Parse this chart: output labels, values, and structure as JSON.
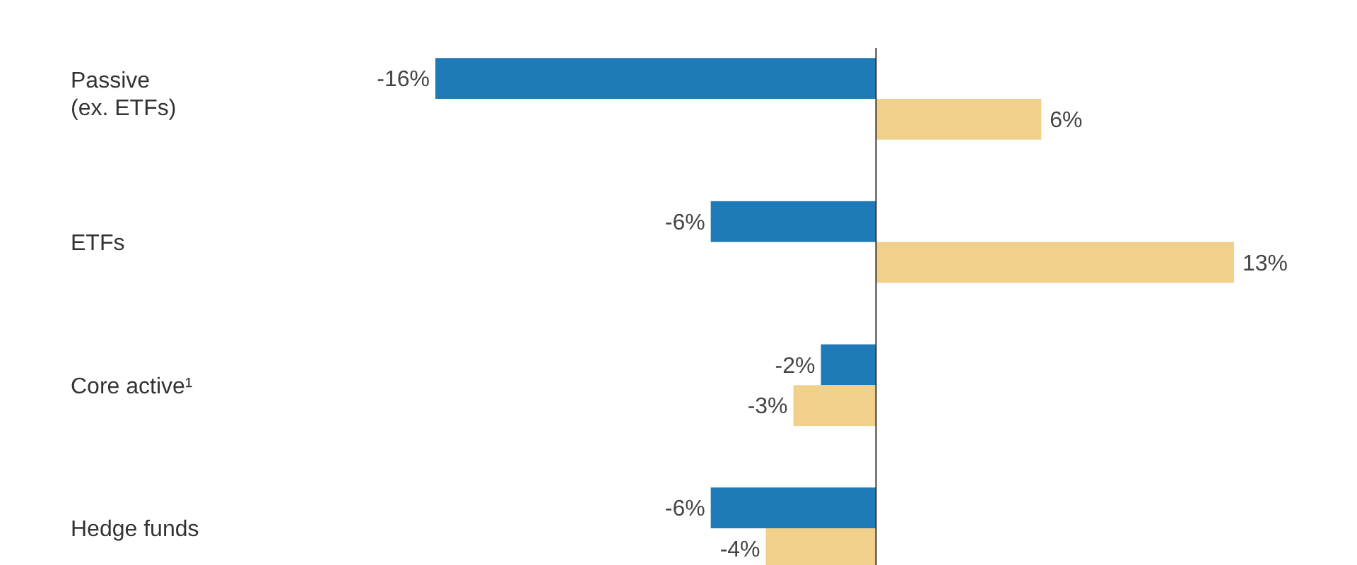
{
  "chart_data": {
    "type": "bar",
    "orientation": "horizontal",
    "categories": [
      "Passive\n(ex. ETFs)",
      "ETFs",
      "Core active¹",
      "Hedge funds"
    ],
    "series": [
      {
        "color": "#1f7ab8",
        "values": [
          -16,
          -6,
          -2,
          -6
        ],
        "value_labels": [
          "-16%",
          "-6%",
          "-2%",
          "-6%"
        ]
      },
      {
        "color": "#f0d08a",
        "values": [
          6,
          13,
          -3,
          -4
        ],
        "value_labels": [
          "6%",
          "13%",
          "-3%",
          "-4%"
        ]
      }
    ]
  }
}
